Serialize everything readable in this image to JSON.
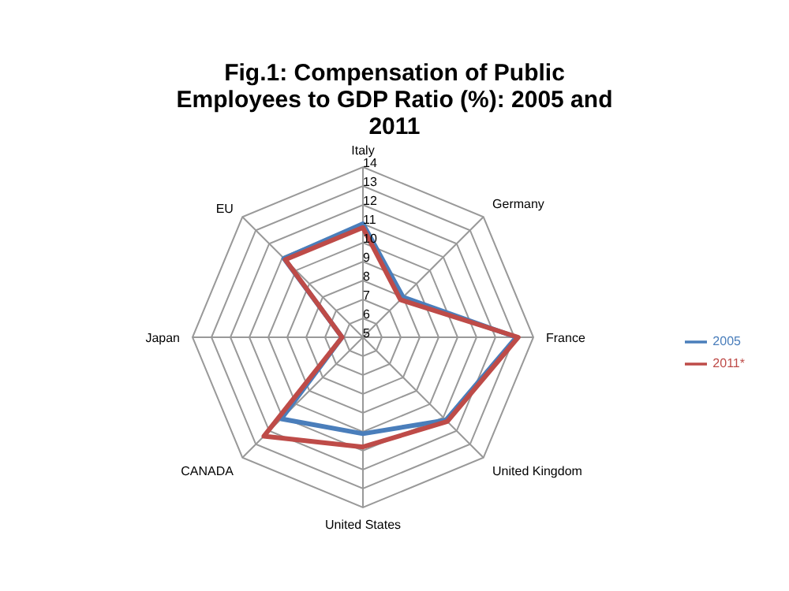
{
  "chart_data": {
    "type": "radar",
    "title": "Fig.1: Compensation of Public Employees to GDP Ratio (%): 2005 and 2011",
    "categories": [
      "Italy",
      "Germany",
      "France",
      "United Kingdom",
      "United States",
      "CANADA",
      "Japan",
      "EU"
    ],
    "series": [
      {
        "name": "2005",
        "color": "#4a7ebb",
        "values": [
          11.0,
          8.0,
          13.1,
          11.2,
          10.1,
          11.1,
          6.1,
          10.9
        ]
      },
      {
        "name": "2011*",
        "color": "#be4b48",
        "values": [
          10.8,
          7.8,
          13.2,
          11.3,
          10.8,
          12.4,
          6.1,
          10.8
        ]
      }
    ],
    "ylim": [
      5,
      14
    ],
    "yticks": [
      5,
      6,
      7,
      8,
      9,
      10,
      11,
      12,
      13,
      14
    ],
    "grid": true,
    "legend": "right"
  }
}
